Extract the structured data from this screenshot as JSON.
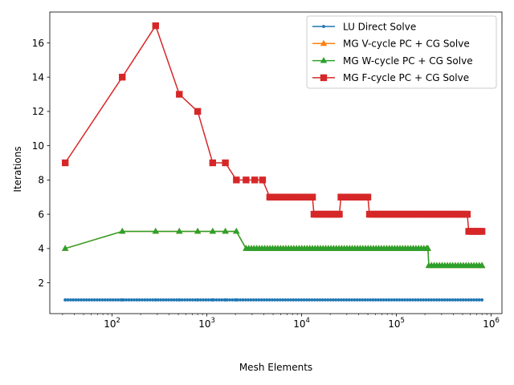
{
  "chart_data": {
    "type": "line",
    "xlabel": "Mesh Elements",
    "ylabel": "Iterations",
    "xscale": "log",
    "xlim": [
      22,
      1300000
    ],
    "ylim": [
      0.2,
      17.8
    ],
    "grid": false,
    "legend_position": "top-right",
    "x_ticks": [
      {
        "value": 100,
        "base": "10",
        "exp": "2"
      },
      {
        "value": 1000,
        "base": "10",
        "exp": "3"
      },
      {
        "value": 10000,
        "base": "10",
        "exp": "4"
      },
      {
        "value": 100000,
        "base": "10",
        "exp": "5"
      },
      {
        "value": 1000000,
        "base": "10",
        "exp": "6"
      }
    ],
    "y_ticks": [
      2,
      4,
      6,
      8,
      10,
      12,
      14,
      16
    ],
    "series": [
      {
        "name": "LU Direct Solve",
        "color": "#1f77b4",
        "marker": "circle",
        "x_range": [
          32,
          800000
        ],
        "segments": [
          {
            "x_from": 32,
            "x_to": 800000,
            "y": 1
          }
        ],
        "points": [
          [
            32,
            1
          ],
          [
            128,
            1
          ],
          [
            288,
            1
          ],
          [
            512,
            1
          ],
          [
            800,
            1
          ],
          [
            1152,
            1
          ],
          [
            1568,
            1
          ],
          [
            2048,
            1
          ]
        ]
      },
      {
        "name": "MG V-cycle PC + CG Solve",
        "color": "#ff7f0e",
        "marker": "triangle",
        "x_range": [
          32,
          800000
        ],
        "segments": [
          {
            "x_from": 2592,
            "x_to": 215000,
            "y": 4
          },
          {
            "x_from": 220000,
            "x_to": 800000,
            "y": 3
          }
        ],
        "points": [
          [
            32,
            4
          ],
          [
            128,
            5
          ],
          [
            288,
            5
          ],
          [
            512,
            5
          ],
          [
            800,
            5
          ],
          [
            1152,
            5
          ],
          [
            1568,
            5
          ],
          [
            2048,
            5
          ]
        ]
      },
      {
        "name": "MG W-cycle PC + CG Solve",
        "color": "#2ca02c",
        "marker": "triangle",
        "x_range": [
          32,
          800000
        ],
        "segments": [
          {
            "x_from": 2592,
            "x_to": 215000,
            "y": 4
          },
          {
            "x_from": 220000,
            "x_to": 800000,
            "y": 3
          }
        ],
        "points": [
          [
            32,
            4
          ],
          [
            128,
            5
          ],
          [
            288,
            5
          ],
          [
            512,
            5
          ],
          [
            800,
            5
          ],
          [
            1152,
            5
          ],
          [
            1568,
            5
          ],
          [
            2048,
            5
          ]
        ]
      },
      {
        "name": "MG F-cycle PC + CG Solve",
        "color": "#d62728",
        "marker": "square",
        "x_range": [
          32,
          800000
        ],
        "segments": [
          {
            "x_from": 4608,
            "x_to": 13000,
            "y": 7
          },
          {
            "x_from": 13500,
            "x_to": 25000,
            "y": 6
          },
          {
            "x_from": 26000,
            "x_to": 50000,
            "y": 7
          },
          {
            "x_from": 52000,
            "x_to": 560000,
            "y": 6
          },
          {
            "x_from": 580000,
            "x_to": 800000,
            "y": 5
          }
        ],
        "points": [
          [
            32,
            9
          ],
          [
            128,
            14
          ],
          [
            288,
            17
          ],
          [
            512,
            13
          ],
          [
            800,
            12
          ],
          [
            1152,
            9
          ],
          [
            1568,
            9
          ],
          [
            2048,
            8
          ],
          [
            2592,
            8
          ],
          [
            3200,
            8
          ],
          [
            3872,
            8
          ]
        ]
      }
    ]
  }
}
